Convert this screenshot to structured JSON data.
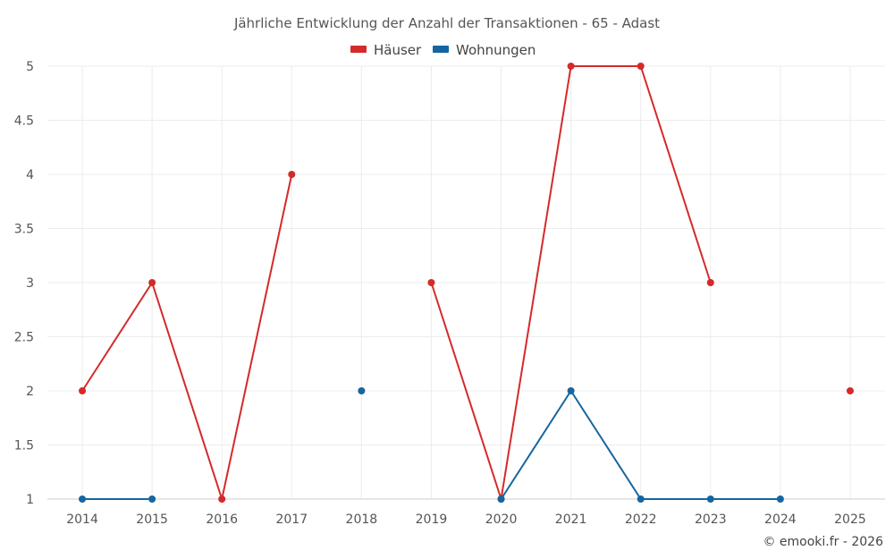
{
  "chart_data": {
    "type": "line",
    "title": "Jährliche Entwicklung der Anzahl der Transaktionen - 65 - Adast",
    "xlabel": "",
    "ylabel": "",
    "categories": [
      "2014",
      "2015",
      "2016",
      "2017",
      "2018",
      "2019",
      "2020",
      "2021",
      "2022",
      "2023",
      "2024",
      "2025"
    ],
    "y_ticks": [
      "1",
      "1.5",
      "2",
      "2.5",
      "3",
      "3.5",
      "4",
      "4.5",
      "5"
    ],
    "ylim": [
      1,
      5
    ],
    "grid": true,
    "legend_position": "top-center",
    "series": [
      {
        "name": "Häuser",
        "color": "#d42a2a",
        "values": [
          2,
          3,
          1,
          4,
          null,
          3,
          1,
          5,
          5,
          3,
          null,
          2
        ]
      },
      {
        "name": "Wohnungen",
        "color": "#1565a0",
        "values": [
          1,
          1,
          null,
          null,
          2,
          null,
          1,
          2,
          1,
          1,
          1,
          null
        ]
      }
    ]
  },
  "credit": "© emooki.fr - 2026"
}
